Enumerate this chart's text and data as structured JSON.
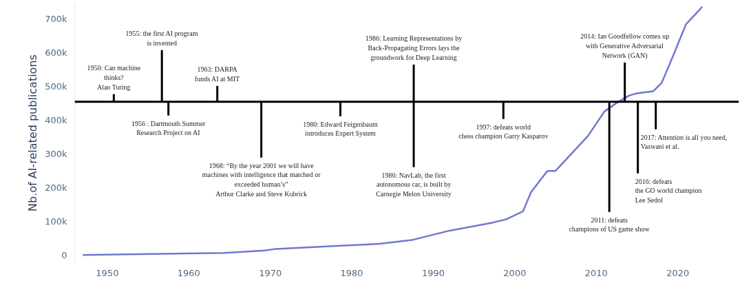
{
  "chart_data": {
    "type": "line",
    "ylabel": "Nb.of AI-related publications",
    "x": [
      1947,
      1964.3,
      1969.3,
      1970.7,
      1983.4,
      1987.5,
      1992,
      1997.3,
      1999,
      2001,
      2002,
      2004,
      2005,
      2009,
      2011,
      2012.6,
      2014,
      2015,
      2017,
      2018,
      2019,
      2021,
      2023
    ],
    "series": [
      {
        "color": "#7077cf",
        "values": [
          1000,
          7000,
          14000,
          19000,
          34000,
          46000,
          73000,
          97000,
          107000,
          130000,
          187000,
          250000,
          250000,
          354000,
          426000,
          453000,
          473000,
          480000,
          486000,
          510000,
          566000,
          684000,
          736000
        ]
      }
    ],
    "xlim": [
      1946,
      2027.5
    ],
    "xticks": [
      1950,
      1960,
      1970,
      1980,
      1990,
      2000,
      2010,
      2020
    ],
    "ylim": [
      -20000,
      745000
    ],
    "yticks": [
      {
        "value": 0,
        "label": "0"
      },
      {
        "value": 100000,
        "label": "100k"
      },
      {
        "value": 200000,
        "label": "200k"
      },
      {
        "value": 300000,
        "label": "300k"
      },
      {
        "value": 400000,
        "label": "400k"
      },
      {
        "value": 500000,
        "label": "500k"
      },
      {
        "value": 600000,
        "label": "600k"
      },
      {
        "value": 700000,
        "label": "700k"
      }
    ],
    "grid": false,
    "marker": "none",
    "line_style": "solid",
    "ref_lines": [
      {
        "axis": "y",
        "value": 455000,
        "label": null,
        "color": "#000000"
      }
    ],
    "annotations": [
      {
        "text": "1950: Can machine\nthinks?\nAlan Turing",
        "x": 1950.8,
        "y": 455000
      },
      {
        "text": "1955: the first AI program\nis invented",
        "x": 1956.7,
        "y": 455000
      },
      {
        "text": "1956 : Dartmouth Summer\nResearch Project on AI",
        "x": 1957.5,
        "y": 455000
      },
      {
        "text": "1963: DARPA\nfunds AI at MIT",
        "x": 1963.5,
        "y": 455000
      },
      {
        "text": "1968: “By the year 2001 we will have\nmachines with intelligence that matched or\nexceeded human’s”\nArthur Clarke and Steve Kubrick",
        "x": 1968.9,
        "y": 455000
      },
      {
        "text": "1980: Edward Feigenbaum\nintroduces Expert System",
        "x": 1978.6,
        "y": 455000
      },
      {
        "text": "1986: Learning Representations by\nBack-Propagating Errors lays the\ngroundwork for Deep Learning",
        "x": 1987.6,
        "y": 455000
      },
      {
        "text": "1986: NavLab, the first\nautonomous car, is built by\nCarnegie Melon University",
        "x": 1987.6,
        "y": 455000
      },
      {
        "text": "1997: defeats world\nchess champion Garry Kasparov",
        "x": 1998.6,
        "y": 455000
      },
      {
        "text": "2011: defeats\nchampions of US game show",
        "x": 2011.6,
        "y": 455000
      },
      {
        "text": "2014: Ian Goodfellow comes up\nwith Generative Adversarial\nNetwork (GAN)",
        "x": 2013.5,
        "y": 455000
      },
      {
        "text": "2016: defeats\nthe GO world champion\n Lee Sedol",
        "x": 2015.1,
        "y": 455000
      },
      {
        "text": "2017: Attention is all you need,\nVaswani et al.",
        "x": 2017.3,
        "y": 455000
      }
    ]
  }
}
